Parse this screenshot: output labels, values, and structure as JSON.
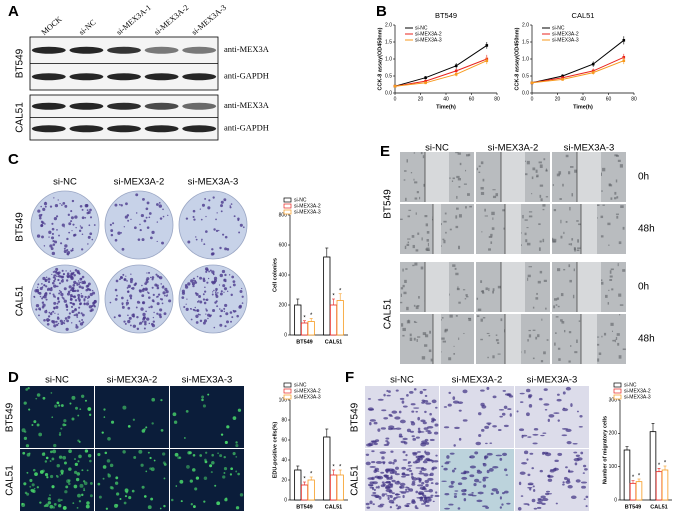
{
  "panels": {
    "labels": [
      "A",
      "B",
      "C",
      "D",
      "E",
      "F"
    ],
    "A": {
      "lanes": [
        "MOCK",
        "si-NC",
        "si-MEX3A-1",
        "si-MEX3A-2",
        "si-MEX3A-3"
      ],
      "cell_lines": [
        "BT549",
        "CAL51"
      ],
      "antibodies": [
        "anti-MEX3A",
        "anti-GAPDH"
      ]
    },
    "C": {
      "columns": [
        "si-NC",
        "si-MEX3A-2",
        "si-MEX3A-3"
      ],
      "rows": [
        "BT549",
        "CAL51"
      ]
    },
    "D": {
      "columns": [
        "si-NC",
        "si-MEX3A-2",
        "si-MEX3A-3"
      ],
      "rows": [
        "BT549",
        "CAL51"
      ]
    },
    "E": {
      "columns": [
        "si-NC",
        "si-MEX3A-2",
        "si-MEX3A-3"
      ],
      "rows": [
        "BT549",
        "CAL51"
      ],
      "times": [
        "0h",
        "48h"
      ]
    },
    "F": {
      "columns": [
        "si-NC",
        "si-MEX3A-2",
        "si-MEX3A-3"
      ],
      "rows": [
        "BT549",
        "CAL51"
      ]
    }
  },
  "chart_data": [
    {
      "type": "line",
      "title": "BT549",
      "xlabel": "Time(h)",
      "ylabel": "CCK-8 assay(OD450nm)",
      "x": [
        0,
        24,
        48,
        72
      ],
      "series": [
        {
          "name": "si-NC",
          "color": "#000000",
          "values": [
            0.2,
            0.45,
            0.8,
            1.4
          ],
          "errors": [
            0.02,
            0.05,
            0.08,
            0.1
          ]
        },
        {
          "name": "si-MEX3A-2",
          "color": "#e8231e",
          "values": [
            0.2,
            0.35,
            0.65,
            1.0
          ],
          "errors": [
            0.02,
            0.04,
            0.07,
            0.12
          ]
        },
        {
          "name": "si-MEX3A-3",
          "color": "#f79a1e",
          "values": [
            0.2,
            0.3,
            0.55,
            0.95
          ],
          "errors": [
            0.02,
            0.04,
            0.06,
            0.1
          ]
        }
      ],
      "xlim": [
        0,
        80
      ],
      "ylim": [
        0,
        2
      ],
      "xticks": [
        0,
        20,
        40,
        60,
        80
      ],
      "yticks": [
        {
          "value": 0,
          "label": "0.0"
        },
        {
          "value": 0.5,
          "label": "0.5"
        },
        {
          "value": 1,
          "label": "1.0"
        },
        {
          "value": 1.5,
          "label": "1.5"
        },
        {
          "value": 2,
          "label": "2.0"
        }
      ]
    },
    {
      "type": "line",
      "title": "CAL51",
      "xlabel": "Time(h)",
      "ylabel": "CCK-8 assay(OD450nm)",
      "x": [
        0,
        24,
        48,
        72
      ],
      "series": [
        {
          "name": "si-NC",
          "color": "#000000",
          "values": [
            0.3,
            0.5,
            0.85,
            1.55
          ],
          "errors": [
            0.02,
            0.05,
            0.08,
            0.12
          ]
        },
        {
          "name": "si-MEX3A-2",
          "color": "#e8231e",
          "values": [
            0.3,
            0.45,
            0.65,
            1.05
          ],
          "errors": [
            0.02,
            0.04,
            0.07,
            0.1
          ]
        },
        {
          "name": "si-MEX3A-3",
          "color": "#f79a1e",
          "values": [
            0.3,
            0.4,
            0.6,
            0.95
          ],
          "errors": [
            0.02,
            0.04,
            0.06,
            0.1
          ]
        }
      ],
      "xlim": [
        0,
        80
      ],
      "ylim": [
        0,
        2
      ],
      "xticks": [
        0,
        20,
        40,
        60,
        80
      ],
      "yticks": [
        {
          "value": 0,
          "label": "0.0"
        },
        {
          "value": 0.5,
          "label": "0.5"
        },
        {
          "value": 1,
          "label": "1.0"
        },
        {
          "value": 1.5,
          "label": "1.5"
        },
        {
          "value": 2,
          "label": "2.0"
        }
      ]
    },
    {
      "type": "bar",
      "ylabel": "Cell colonies",
      "categories": [
        "BT549",
        "CAL51"
      ],
      "annotation": "*",
      "series": [
        {
          "name": "si-NC",
          "color": "#000000",
          "values": [
            200,
            520
          ],
          "errors": [
            40,
            60
          ]
        },
        {
          "name": "si-MEX3A-2",
          "color": "#e8231e",
          "values": [
            80,
            200
          ],
          "errors": [
            15,
            40
          ]
        },
        {
          "name": "si-MEX3A-3",
          "color": "#f79a1e",
          "values": [
            90,
            230
          ],
          "errors": [
            20,
            45
          ]
        }
      ],
      "ylim": [
        0,
        800
      ],
      "yticks": [
        0,
        200,
        400,
        600,
        800
      ]
    },
    {
      "type": "bar",
      "ylabel": "EDU-positive cells(%)",
      "categories": [
        "BT549",
        "CAL51"
      ],
      "annotation": "*",
      "series": [
        {
          "name": "si-NC",
          "color": "#000000",
          "values": [
            30,
            63
          ],
          "errors": [
            4,
            8
          ]
        },
        {
          "name": "si-MEX3A-2",
          "color": "#e8231e",
          "values": [
            15,
            25
          ],
          "errors": [
            3,
            5
          ]
        },
        {
          "name": "si-MEX3A-3",
          "color": "#f79a1e",
          "values": [
            20,
            25
          ],
          "errors": [
            3,
            5
          ]
        }
      ],
      "ylim": [
        0,
        100
      ],
      "yticks": [
        0,
        20,
        40,
        60,
        80,
        100
      ]
    },
    {
      "type": "bar",
      "ylabel": "Number of migratory cells",
      "categories": [
        "BT549",
        "CAL51"
      ],
      "annotation": "*",
      "series": [
        {
          "name": "si-NC",
          "color": "#000000",
          "values": [
            150,
            205
          ],
          "errors": [
            10,
            25
          ]
        },
        {
          "name": "si-MEX3A-2",
          "color": "#e8231e",
          "values": [
            50,
            85
          ],
          "errors": [
            8,
            10
          ]
        },
        {
          "name": "si-MEX3A-3",
          "color": "#f79a1e",
          "values": [
            55,
            90
          ],
          "errors": [
            8,
            12
          ]
        }
      ],
      "ylim": [
        0,
        300
      ],
      "yticks": [
        0,
        100,
        200,
        300
      ]
    }
  ]
}
